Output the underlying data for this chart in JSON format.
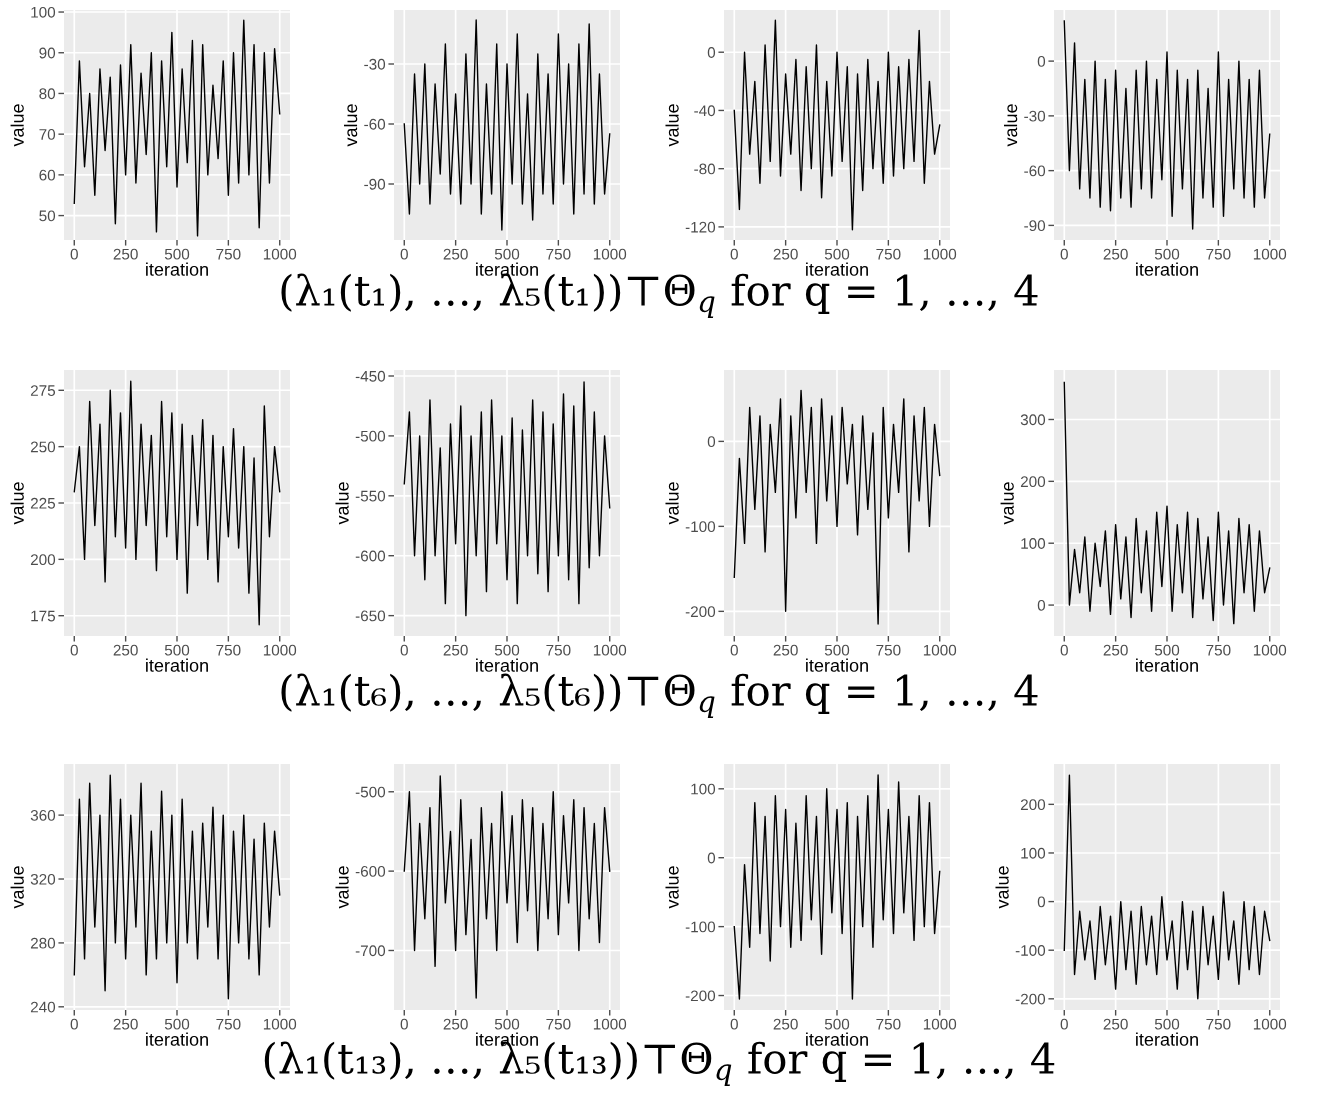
{
  "chart_data": [
    {
      "type": "line",
      "xlabel": "iteration",
      "ylabel": "value",
      "grid": true,
      "xlim": [
        -50,
        1050
      ],
      "xticks": [
        0,
        250,
        500,
        750,
        1000
      ],
      "ylim": [
        44,
        100.5
      ],
      "annotations": [
        "(λ₁(t₁), …, λ₅(t₁))⊤Θ$_{q}$ for q = 1, …, 4"
      ],
      "yticks": [
        50,
        60,
        70,
        80,
        90,
        100
      ],
      "x": [
        0,
        25,
        50,
        75,
        100,
        125,
        150,
        175,
        200,
        225,
        250,
        275,
        300,
        325,
        350,
        375,
        400,
        425,
        450,
        475,
        500,
        525,
        550,
        575,
        600,
        625,
        650,
        675,
        700,
        725,
        750,
        775,
        800,
        825,
        850,
        875,
        900,
        925,
        950,
        975,
        1000
      ],
      "series": [
        {
          "color": "#000000",
          "values": [
            53,
            88,
            62,
            80,
            55,
            86,
            66,
            84,
            48,
            87,
            60,
            92,
            58,
            85,
            65,
            90,
            46,
            88,
            62,
            95,
            57,
            86,
            63,
            93,
            45,
            92,
            60,
            82,
            64,
            88,
            55,
            90,
            58,
            98,
            60,
            92,
            47,
            90,
            58,
            91,
            75
          ]
        }
      ]
    },
    {
      "type": "line",
      "xlabel": "iteration",
      "ylabel": "value",
      "grid": true,
      "xlim": [
        -50,
        1050
      ],
      "xticks": [
        0,
        250,
        500,
        750,
        1000
      ],
      "ylim": [
        -118,
        -3
      ],
      "yticks": [
        -90,
        -60,
        -30
      ],
      "x": [
        0,
        25,
        50,
        75,
        100,
        125,
        150,
        175,
        200,
        225,
        250,
        275,
        300,
        325,
        350,
        375,
        400,
        425,
        450,
        475,
        500,
        525,
        550,
        575,
        600,
        625,
        650,
        675,
        700,
        725,
        750,
        775,
        800,
        825,
        850,
        875,
        900,
        925,
        950,
        975,
        1000
      ],
      "series": [
        {
          "color": "#000000",
          "values": [
            -60,
            -105,
            -35,
            -90,
            -30,
            -100,
            -40,
            -85,
            -20,
            -95,
            -45,
            -100,
            -25,
            -90,
            -8,
            -105,
            -40,
            -95,
            -20,
            -113,
            -30,
            -90,
            -15,
            -100,
            -45,
            -108,
            -25,
            -95,
            -35,
            -100,
            -15,
            -90,
            -30,
            -105,
            -20,
            -95,
            -10,
            -100,
            -35,
            -95,
            -65
          ]
        }
      ]
    },
    {
      "type": "line",
      "xlabel": "iteration",
      "ylabel": "value",
      "grid": true,
      "xlim": [
        -50,
        1050
      ],
      "xticks": [
        0,
        250,
        500,
        750,
        1000
      ],
      "ylim": [
        -129,
        29
      ],
      "yticks": [
        -120,
        -80,
        -40,
        0
      ],
      "x": [
        0,
        25,
        50,
        75,
        100,
        125,
        150,
        175,
        200,
        225,
        250,
        275,
        300,
        325,
        350,
        375,
        400,
        425,
        450,
        475,
        500,
        525,
        550,
        575,
        600,
        625,
        650,
        675,
        700,
        725,
        750,
        775,
        800,
        825,
        850,
        875,
        900,
        925,
        950,
        975,
        1000
      ],
      "series": [
        {
          "color": "#000000",
          "values": [
            -40,
            -108,
            0,
            -70,
            -20,
            -90,
            5,
            -75,
            22,
            -85,
            -15,
            -70,
            -5,
            -95,
            -10,
            -80,
            5,
            -100,
            -20,
            -85,
            0,
            -75,
            -10,
            -122,
            -15,
            -95,
            -5,
            -80,
            -20,
            -90,
            0,
            -85,
            -10,
            -80,
            -5,
            -75,
            15,
            -90,
            -20,
            -70,
            -50
          ]
        }
      ]
    },
    {
      "type": "line",
      "xlabel": "iteration",
      "ylabel": "value",
      "grid": true,
      "xlim": [
        -50,
        1050
      ],
      "xticks": [
        0,
        250,
        500,
        750,
        1000
      ],
      "ylim": [
        -98,
        28
      ],
      "yticks": [
        -90,
        -60,
        -30,
        0
      ],
      "x": [
        0,
        25,
        50,
        75,
        100,
        125,
        150,
        175,
        200,
        225,
        250,
        275,
        300,
        325,
        350,
        375,
        400,
        425,
        450,
        475,
        500,
        525,
        550,
        575,
        600,
        625,
        650,
        675,
        700,
        725,
        750,
        775,
        800,
        825,
        850,
        875,
        900,
        925,
        950,
        975,
        1000
      ],
      "series": [
        {
          "color": "#000000",
          "values": [
            22,
            -60,
            10,
            -70,
            -10,
            -75,
            0,
            -80,
            -10,
            -82,
            -5,
            -75,
            -15,
            -80,
            -5,
            -70,
            0,
            -75,
            -10,
            -65,
            5,
            -85,
            -5,
            -70,
            -10,
            -92,
            -5,
            -75,
            -15,
            -80,
            5,
            -85,
            -10,
            -70,
            0,
            -75,
            -10,
            -80,
            -5,
            -75,
            -40
          ]
        }
      ]
    },
    {
      "type": "line",
      "xlabel": "iteration",
      "ylabel": "value",
      "grid": true,
      "xlim": [
        -50,
        1050
      ],
      "xticks": [
        0,
        250,
        500,
        750,
        1000
      ],
      "ylim": [
        166,
        284
      ],
      "yticks": [
        175,
        200,
        225,
        250,
        275
      ],
      "annotations": [
        "(λ₁(t₆), …, λ₅(t₆))⊤Θ$_{q}$ for q = 1, …, 4"
      ],
      "x": [
        0,
        25,
        50,
        75,
        100,
        125,
        150,
        175,
        200,
        225,
        250,
        275,
        300,
        325,
        350,
        375,
        400,
        425,
        450,
        475,
        500,
        525,
        550,
        575,
        600,
        625,
        650,
        675,
        700,
        725,
        750,
        775,
        800,
        825,
        850,
        875,
        900,
        925,
        950,
        975,
        1000
      ],
      "series": [
        {
          "color": "#000000",
          "values": [
            230,
            250,
            200,
            270,
            215,
            260,
            190,
            275,
            210,
            265,
            205,
            279,
            200,
            260,
            215,
            255,
            195,
            270,
            210,
            265,
            200,
            260,
            185,
            255,
            215,
            262,
            200,
            255,
            190,
            250,
            210,
            258,
            205,
            250,
            185,
            245,
            171,
            268,
            210,
            250,
            230
          ]
        }
      ]
    },
    {
      "type": "line",
      "xlabel": "iteration",
      "ylabel": "value",
      "grid": true,
      "xlim": [
        -50,
        1050
      ],
      "xticks": [
        0,
        250,
        500,
        750,
        1000
      ],
      "ylim": [
        -667,
        -445
      ],
      "yticks": [
        -650,
        -600,
        -550,
        -500,
        -450
      ],
      "x": [
        0,
        25,
        50,
        75,
        100,
        125,
        150,
        175,
        200,
        225,
        250,
        275,
        300,
        325,
        350,
        375,
        400,
        425,
        450,
        475,
        500,
        525,
        550,
        575,
        600,
        625,
        650,
        675,
        700,
        725,
        750,
        775,
        800,
        825,
        850,
        875,
        900,
        925,
        950,
        975,
        1000
      ],
      "series": [
        {
          "color": "#000000",
          "values": [
            -540,
            -480,
            -600,
            -500,
            -620,
            -470,
            -600,
            -510,
            -640,
            -490,
            -590,
            -475,
            -650,
            -500,
            -600,
            -480,
            -630,
            -470,
            -590,
            -500,
            -620,
            -485,
            -640,
            -495,
            -600,
            -470,
            -615,
            -480,
            -630,
            -490,
            -600,
            -465,
            -620,
            -475,
            -640,
            -455,
            -610,
            -480,
            -600,
            -500,
            -560
          ]
        }
      ]
    },
    {
      "type": "line",
      "xlabel": "iteration",
      "ylabel": "value",
      "grid": true,
      "xlim": [
        -50,
        1050
      ],
      "xticks": [
        0,
        250,
        500,
        750,
        1000
      ],
      "ylim": [
        -229,
        84
      ],
      "yticks": [
        -200,
        -100,
        0
      ],
      "x": [
        0,
        25,
        50,
        75,
        100,
        125,
        150,
        175,
        200,
        225,
        250,
        275,
        300,
        325,
        350,
        375,
        400,
        425,
        450,
        475,
        500,
        525,
        550,
        575,
        600,
        625,
        650,
        675,
        700,
        725,
        750,
        775,
        800,
        825,
        850,
        875,
        900,
        925,
        950,
        975,
        1000
      ],
      "series": [
        {
          "color": "#000000",
          "values": [
            -160,
            -20,
            -120,
            40,
            -80,
            30,
            -130,
            20,
            -60,
            50,
            -200,
            30,
            -90,
            60,
            -60,
            40,
            -120,
            50,
            -70,
            30,
            -100,
            40,
            -50,
            20,
            -110,
            30,
            -80,
            10,
            -215,
            40,
            -90,
            20,
            -60,
            50,
            -130,
            30,
            -70,
            40,
            -100,
            20,
            -40
          ]
        }
      ]
    },
    {
      "type": "line",
      "xlabel": "iteration",
      "ylabel": "value",
      "grid": true,
      "xlim": [
        -50,
        1050
      ],
      "xticks": [
        0,
        250,
        500,
        750,
        1000
      ],
      "ylim": [
        -50,
        380
      ],
      "yticks": [
        0,
        100,
        200,
        300
      ],
      "x": [
        0,
        25,
        50,
        75,
        100,
        125,
        150,
        175,
        200,
        225,
        250,
        275,
        300,
        325,
        350,
        375,
        400,
        425,
        450,
        475,
        500,
        525,
        550,
        575,
        600,
        625,
        650,
        675,
        700,
        725,
        750,
        775,
        800,
        825,
        850,
        875,
        900,
        925,
        950,
        975,
        1000
      ],
      "series": [
        {
          "color": "#000000",
          "values": [
            360,
            0,
            90,
            20,
            110,
            -10,
            100,
            30,
            120,
            -15,
            130,
            10,
            110,
            -20,
            140,
            20,
            120,
            -10,
            150,
            30,
            160,
            -10,
            130,
            20,
            150,
            -20,
            140,
            10,
            110,
            -25,
            150,
            0,
            120,
            -30,
            140,
            20,
            130,
            -10,
            120,
            20,
            60
          ]
        }
      ]
    },
    {
      "type": "line",
      "xlabel": "iteration",
      "ylabel": "value",
      "grid": true,
      "xlim": [
        -50,
        1050
      ],
      "xticks": [
        0,
        250,
        500,
        750,
        1000
      ],
      "ylim": [
        238,
        392
      ],
      "yticks": [
        240,
        280,
        320,
        360
      ],
      "annotations": [
        "(λ₁(t₁₃), …, λ₅(t₁₃))⊤Θ$_{q}$ for q = 1, …, 4"
      ],
      "x": [
        0,
        25,
        50,
        75,
        100,
        125,
        150,
        175,
        200,
        225,
        250,
        275,
        300,
        325,
        350,
        375,
        400,
        425,
        450,
        475,
        500,
        525,
        550,
        575,
        600,
        625,
        650,
        675,
        700,
        725,
        750,
        775,
        800,
        825,
        850,
        875,
        900,
        925,
        950,
        975,
        1000
      ],
      "series": [
        {
          "color": "#000000",
          "values": [
            260,
            370,
            270,
            380,
            290,
            360,
            250,
            385,
            280,
            370,
            270,
            360,
            290,
            380,
            260,
            350,
            270,
            375,
            280,
            360,
            255,
            370,
            280,
            350,
            270,
            355,
            290,
            365,
            270,
            360,
            245,
            350,
            280,
            360,
            270,
            345,
            260,
            355,
            290,
            350,
            310
          ]
        }
      ]
    },
    {
      "type": "line",
      "xlabel": "iteration",
      "ylabel": "value",
      "grid": true,
      "xlim": [
        -50,
        1050
      ],
      "xticks": [
        0,
        250,
        500,
        750,
        1000
      ],
      "ylim": [
        -775,
        -465
      ],
      "yticks": [
        -700,
        -600,
        -500
      ],
      "x": [
        0,
        25,
        50,
        75,
        100,
        125,
        150,
        175,
        200,
        225,
        250,
        275,
        300,
        325,
        350,
        375,
        400,
        425,
        450,
        475,
        500,
        525,
        550,
        575,
        600,
        625,
        650,
        675,
        700,
        725,
        750,
        775,
        800,
        825,
        850,
        875,
        900,
        925,
        950,
        975,
        1000
      ],
      "series": [
        {
          "color": "#000000",
          "values": [
            -600,
            -500,
            -700,
            -540,
            -660,
            -520,
            -720,
            -480,
            -640,
            -550,
            -700,
            -510,
            -680,
            -560,
            -760,
            -520,
            -660,
            -540,
            -700,
            -500,
            -640,
            -530,
            -690,
            -510,
            -650,
            -520,
            -700,
            -540,
            -660,
            -500,
            -680,
            -530,
            -640,
            -510,
            -700,
            -520,
            -660,
            -540,
            -690,
            -520,
            -600
          ]
        }
      ]
    },
    {
      "type": "line",
      "xlabel": "iteration",
      "ylabel": "value",
      "grid": true,
      "xlim": [
        -50,
        1050
      ],
      "xticks": [
        0,
        250,
        500,
        750,
        1000
      ],
      "ylim": [
        -221,
        136
      ],
      "yticks": [
        -200,
        -100,
        0,
        100
      ],
      "x": [
        0,
        25,
        50,
        75,
        100,
        125,
        150,
        175,
        200,
        225,
        250,
        275,
        300,
        325,
        350,
        375,
        400,
        425,
        450,
        475,
        500,
        525,
        550,
        575,
        600,
        625,
        650,
        675,
        700,
        725,
        750,
        775,
        800,
        825,
        850,
        875,
        900,
        925,
        950,
        975,
        1000
      ],
      "series": [
        {
          "color": "#000000",
          "values": [
            -100,
            -205,
            -10,
            -130,
            80,
            -110,
            60,
            -150,
            90,
            -100,
            70,
            -130,
            50,
            -120,
            90,
            -90,
            60,
            -140,
            100,
            -80,
            70,
            -110,
            80,
            -205,
            60,
            -100,
            90,
            -130,
            120,
            -90,
            70,
            -110,
            110,
            -80,
            60,
            -120,
            90,
            -100,
            80,
            -110,
            -20
          ]
        }
      ]
    },
    {
      "type": "line",
      "xlabel": "iteration",
      "ylabel": "value",
      "grid": true,
      "xlim": [
        -50,
        1050
      ],
      "xticks": [
        0,
        250,
        500,
        750,
        1000
      ],
      "ylim": [
        -223,
        283
      ],
      "yticks": [
        -200,
        -100,
        0,
        100,
        200
      ],
      "x": [
        0,
        25,
        50,
        75,
        100,
        125,
        150,
        175,
        200,
        225,
        250,
        275,
        300,
        325,
        350,
        375,
        400,
        425,
        450,
        475,
        500,
        525,
        550,
        575,
        600,
        625,
        650,
        675,
        700,
        725,
        750,
        775,
        800,
        825,
        850,
        875,
        900,
        925,
        950,
        975,
        1000
      ],
      "series": [
        {
          "color": "#000000",
          "values": [
            -100,
            260,
            -150,
            -20,
            -120,
            -40,
            -160,
            -10,
            -130,
            -30,
            -180,
            0,
            -140,
            -20,
            -170,
            -10,
            -130,
            -30,
            -150,
            10,
            -120,
            -40,
            -180,
            0,
            -140,
            -20,
            -200,
            -10,
            -130,
            -30,
            -160,
            20,
            -120,
            -40,
            -170,
            0,
            -140,
            -10,
            -150,
            -20,
            -80
          ]
        }
      ]
    }
  ]
}
